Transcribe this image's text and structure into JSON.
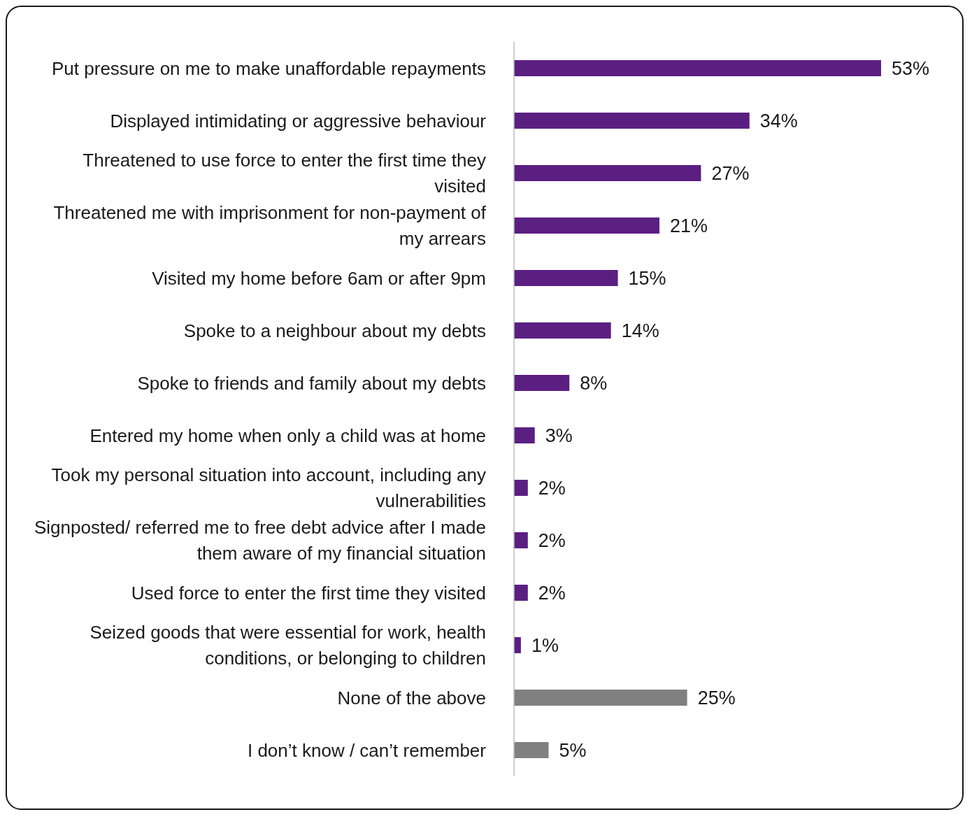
{
  "chart_data": {
    "type": "bar",
    "orientation": "horizontal",
    "categories": [
      "Put pressure on me to make unaffordable repayments",
      "Displayed intimidating or aggressive behaviour",
      "Threatened to use force to enter the first time they visited",
      "Threatened me with imprisonment for non-payment of my arrears",
      "Visited my home before 6am or after 9pm",
      "Spoke to a neighbour about my debts",
      "Spoke to friends and family about my debts",
      "Entered my home when only a child was at home",
      "Took my personal situation into account, including any vulnerabilities",
      "Signposted/ referred me to free debt advice after I made them aware of my financial situation",
      "Used force to enter the first time they visited",
      "Seized goods that were essential for work, health conditions, or belonging to children",
      "None of the above",
      "I don’t know / can’t remember"
    ],
    "values": [
      53,
      34,
      27,
      21,
      15,
      14,
      8,
      3,
      2,
      2,
      2,
      1,
      25,
      5
    ],
    "colors": [
      "#5b1f82",
      "#5b1f82",
      "#5b1f82",
      "#5b1f82",
      "#5b1f82",
      "#5b1f82",
      "#5b1f82",
      "#5b1f82",
      "#5b1f82",
      "#5b1f82",
      "#5b1f82",
      "#5b1f82",
      "#808080",
      "#808080"
    ],
    "value_labels": [
      "53%",
      "34%",
      "27%",
      "21%",
      "15%",
      "14%",
      "8%",
      "3%",
      "2%",
      "2%",
      "2%",
      "1%",
      "25%",
      "5%"
    ],
    "tick_labels": "y",
    "grid": false,
    "legend": false
  }
}
